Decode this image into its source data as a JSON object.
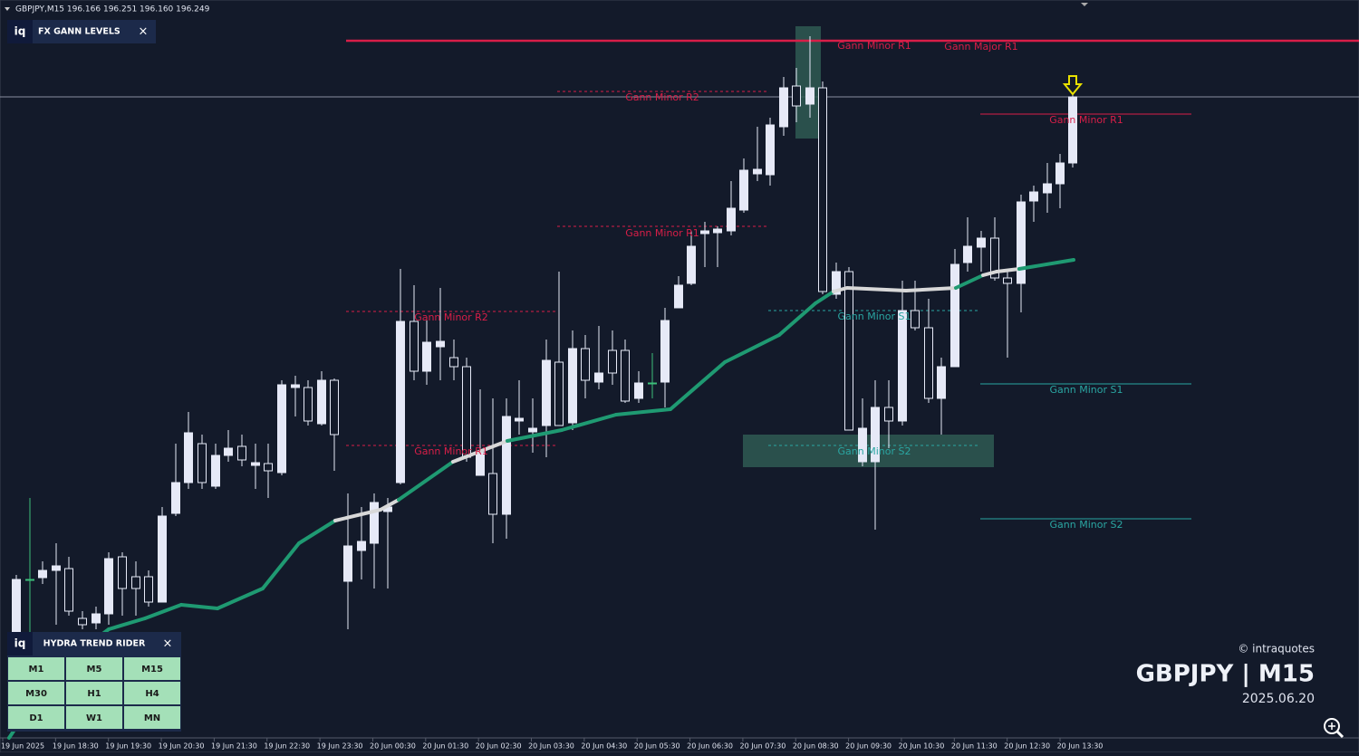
{
  "header": {
    "text": "GBPJPY,M15  196.166 196.251 196.160 196.249"
  },
  "gann_panel": {
    "logo": "iq",
    "title": "FX GANN LEVELS",
    "close": "×"
  },
  "levels": [
    {
      "label": "Gann Minor R1"
    },
    {
      "label": "Gann Major R1"
    },
    {
      "label": "Gann Minor R2"
    },
    {
      "label": "Gann Minor R1"
    },
    {
      "label": "Gann Minor R2"
    },
    {
      "label": "Gann Minor R1"
    },
    {
      "label": "Gann Minor S1"
    },
    {
      "label": "Gann Minor S2"
    },
    {
      "label": "Gann Minor R1"
    },
    {
      "label": "Gann Minor S1"
    },
    {
      "label": "Gann Minor S2"
    }
  ],
  "time_axis": [
    "19 Jun 2025",
    "19 Jun 18:30",
    "19 Jun 19:30",
    "19 Jun 20:30",
    "19 Jun 21:30",
    "19 Jun 22:30",
    "19 Jun 23:30",
    "20 Jun 00:30",
    "20 Jun 01:30",
    "20 Jun 02:30",
    "20 Jun 03:30",
    "20 Jun 04:30",
    "20 Jun 05:30",
    "20 Jun 06:30",
    "20 Jun 07:30",
    "20 Jun 08:30",
    "20 Jun 09:30",
    "20 Jun 10:30",
    "20 Jun 11:30",
    "20 Jun 12:30",
    "20 Jun 13:30"
  ],
  "trend_panel": {
    "logo": "iq",
    "title": "HYDRA TREND RIDER",
    "close": "×",
    "buttons": [
      "M1",
      "M5",
      "M15",
      "M30",
      "H1",
      "H4",
      "D1",
      "W1",
      "MN"
    ]
  },
  "watermark": {
    "credit": "© intraquotes",
    "symbol": "GBPJPY | M15",
    "date": "2025.06.20"
  }
}
